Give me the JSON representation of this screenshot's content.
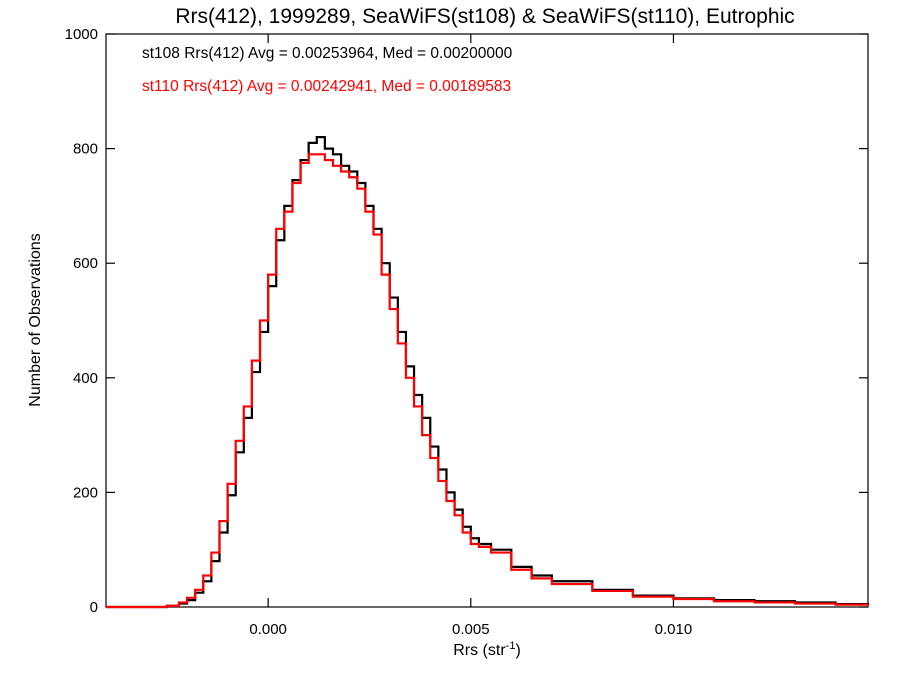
{
  "chart_data": {
    "type": "line",
    "title": "Rrs(412), 1999289, SeaWiFS(st108) & SeaWiFS(st110), Eutrophic",
    "xlabel": "Rrs (str",
    "xlabel_sup": "-1",
    "xlabel_end": ")",
    "ylabel": "Number of Observations",
    "xlim": [
      -0.004,
      0.0148
    ],
    "ylim": [
      0,
      1000
    ],
    "xticks": [
      0.0,
      0.005,
      0.01
    ],
    "xtick_labels": [
      "0.000",
      "0.005",
      "0.010"
    ],
    "yticks": [
      0,
      200,
      400,
      600,
      800,
      1000
    ],
    "ytick_labels": [
      "0",
      "200",
      "400",
      "600",
      "800",
      "1000"
    ],
    "grid": false,
    "step": "histogram",
    "annotations": [
      {
        "text": "st108 Rrs(412) Avg = 0.00253964, Med = 0.00200000",
        "color": "#000000"
      },
      {
        "text": "st110 Rrs(412) Avg = 0.00242941, Med = 0.00189583",
        "color": "#ff0000"
      }
    ],
    "x": [
      -0.004,
      -0.003,
      -0.0025,
      -0.0022,
      -0.002,
      -0.0018,
      -0.0016,
      -0.0014,
      -0.0012,
      -0.001,
      -0.0008,
      -0.0006,
      -0.0004,
      -0.0002,
      0.0,
      0.0002,
      0.0004,
      0.0006,
      0.0008,
      0.001,
      0.0012,
      0.0014,
      0.0016,
      0.0018,
      0.002,
      0.0022,
      0.0024,
      0.0026,
      0.0028,
      0.003,
      0.0032,
      0.0034,
      0.0036,
      0.0038,
      0.004,
      0.0042,
      0.0044,
      0.0046,
      0.0048,
      0.005,
      0.0052,
      0.0055,
      0.006,
      0.0065,
      0.007,
      0.008,
      0.009,
      0.01,
      0.011,
      0.012,
      0.013,
      0.014,
      0.0148
    ],
    "series": [
      {
        "name": "st108",
        "color": "#000000",
        "values": [
          0,
          0,
          2,
          6,
          12,
          25,
          45,
          80,
          130,
          195,
          270,
          330,
          410,
          480,
          560,
          640,
          700,
          745,
          780,
          810,
          820,
          800,
          790,
          770,
          760,
          740,
          700,
          660,
          600,
          540,
          480,
          420,
          370,
          330,
          280,
          240,
          200,
          170,
          140,
          120,
          110,
          100,
          70,
          55,
          45,
          30,
          20,
          15,
          12,
          10,
          8,
          5,
          4
        ]
      },
      {
        "name": "st110",
        "color": "#ff0000",
        "values": [
          0,
          0,
          2,
          8,
          16,
          30,
          55,
          95,
          150,
          215,
          290,
          350,
          430,
          500,
          580,
          660,
          690,
          740,
          775,
          790,
          790,
          780,
          770,
          760,
          750,
          730,
          690,
          650,
          580,
          520,
          460,
          400,
          350,
          300,
          260,
          220,
          185,
          160,
          130,
          110,
          105,
          95,
          65,
          50,
          40,
          28,
          18,
          14,
          10,
          8,
          6,
          4,
          3
        ]
      }
    ]
  }
}
